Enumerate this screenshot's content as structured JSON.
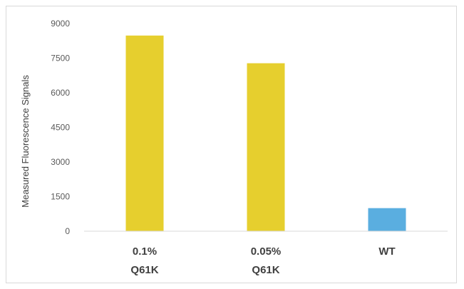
{
  "chart_data": {
    "type": "bar",
    "categories": [
      [
        "0.1%",
        "Q61K"
      ],
      [
        "0.05%",
        "Q61K"
      ],
      [
        "WT"
      ]
    ],
    "values": [
      8480,
      7280,
      1000
    ],
    "bar_colors": [
      "#e6cf2e",
      "#e6cf2e",
      "#5aaee0"
    ],
    "ylabel": "Measured Fluorescence Signals",
    "ylim": [
      0,
      9000
    ],
    "yticks": [
      "0",
      "1500",
      "3000",
      "4500",
      "6000",
      "7500",
      "9000"
    ],
    "ytick_values": [
      0,
      1500,
      3000,
      4500,
      6000,
      7500,
      9000
    ],
    "grid": false,
    "legend": "none"
  }
}
